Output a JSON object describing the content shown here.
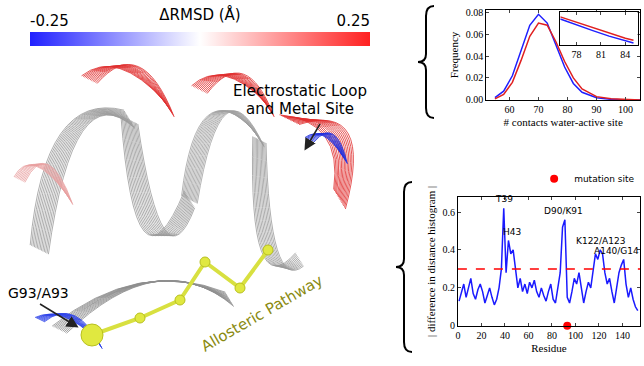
{
  "chart_data": [
    {
      "type": "line",
      "x_label": "# contacts water-active site",
      "y_label": "Frequency",
      "x": [
        55,
        58,
        61,
        64,
        67,
        70,
        73,
        76,
        79,
        82,
        85,
        90,
        95,
        100,
        105
      ],
      "series": [
        {
          "color": "#1f1fff",
          "values": [
            0.002,
            0.008,
            0.022,
            0.045,
            0.068,
            0.078,
            0.07,
            0.05,
            0.03,
            0.015,
            0.007,
            0.002,
            0.0005,
            0,
            0
          ]
        },
        {
          "color": "#e02020",
          "values": [
            0.001,
            0.005,
            0.016,
            0.036,
            0.058,
            0.07,
            0.068,
            0.053,
            0.035,
            0.02,
            0.01,
            0.003,
            0.001,
            0.0002,
            0
          ]
        }
      ],
      "xlim": [
        52,
        105
      ],
      "xticks": [
        60,
        70,
        80,
        90,
        100
      ],
      "ylim": [
        0,
        0.082
      ],
      "yticks": [
        {
          "value": 0,
          "label": "0.00"
        },
        0.02,
        0.04,
        0.06,
        0.08
      ]
    },
    {
      "type": "line",
      "x": [
        76,
        78,
        80,
        82,
        84,
        85
      ],
      "series": [
        {
          "color": "#1f1fff",
          "values": [
            0.05,
            0.041,
            0.033,
            0.025,
            0.018,
            0.015
          ]
        },
        {
          "color": "#e02020",
          "values": [
            0.053,
            0.045,
            0.037,
            0.029,
            0.022,
            0.019
          ]
        }
      ],
      "xlim": [
        76,
        85.5
      ],
      "xticks": [
        78,
        81,
        84
      ],
      "ylim": [
        0.012,
        0.06
      ],
      "yticks": [],
      "tick_labels": "x"
    },
    {
      "type": "line",
      "x_label": "Residue",
      "y_label": "| difference in distance histogram |",
      "x": [
        1,
        3,
        5,
        7,
        9,
        11,
        13,
        15,
        17,
        19,
        21,
        23,
        25,
        27,
        29,
        31,
        33,
        35,
        37,
        39,
        41,
        43,
        45,
        47,
        49,
        51,
        53,
        55,
        57,
        59,
        61,
        63,
        65,
        67,
        69,
        71,
        73,
        75,
        77,
        79,
        81,
        83,
        85,
        87,
        89,
        91,
        93,
        95,
        97,
        99,
        101,
        103,
        105,
        107,
        109,
        111,
        113,
        115,
        117,
        119,
        121,
        123,
        125,
        127,
        129,
        131,
        133,
        135,
        137,
        139,
        141,
        143,
        145,
        147,
        149,
        151,
        153
      ],
      "series": [
        {
          "color": "#1a1aff",
          "values": [
            0.13,
            0.18,
            0.22,
            0.15,
            0.2,
            0.25,
            0.17,
            0.14,
            0.19,
            0.22,
            0.18,
            0.12,
            0.16,
            0.2,
            0.15,
            0.11,
            0.14,
            0.2,
            0.3,
            0.62,
            0.28,
            0.45,
            0.38,
            0.4,
            0.3,
            0.2,
            0.25,
            0.18,
            0.22,
            0.17,
            0.23,
            0.2,
            0.24,
            0.18,
            0.15,
            0.2,
            0.16,
            0.13,
            0.18,
            0.22,
            0.14,
            0.12,
            0.2,
            0.28,
            0.52,
            0.56,
            0.15,
            0.12,
            0.18,
            0.25,
            0.22,
            0.28,
            0.2,
            0.12,
            0.18,
            0.23,
            0.2,
            0.3,
            0.38,
            0.35,
            0.4,
            0.38,
            0.28,
            0.22,
            0.25,
            0.18,
            0.12,
            0.2,
            0.28,
            0.32,
            0.35,
            0.22,
            0.15,
            0.2,
            0.14,
            0.1,
            0.08
          ]
        },
        {
          "color": "#ff0000",
          "line_style": "dash",
          "x": [
            0,
            155
          ],
          "values": [
            0.3,
            0.3
          ]
        },
        {
          "name": "mutation site",
          "color": "#ff0000",
          "marker": "circle",
          "x": [
            93
          ],
          "values": [
            0
          ]
        }
      ],
      "xlim": [
        0,
        155
      ],
      "xticks": [
        0,
        20,
        40,
        60,
        80,
        100,
        120,
        140
      ],
      "ylim": [
        0,
        0.68
      ],
      "yticks": [
        0,
        0.2,
        0.4,
        0.6
      ],
      "legend": "top right",
      "annotations": [
        {
          "text": "T39",
          "x": 39,
          "y": 0.63
        },
        {
          "text": "H43",
          "x": 46,
          "y": 0.46
        },
        {
          "text": "D90/K91",
          "x": 90,
          "y": 0.57
        },
        {
          "text": "K122/A123",
          "x": 121,
          "y": 0.41
        },
        {
          "text": "A140/G14",
          "x": 135,
          "y": 0.36
        }
      ]
    }
  ],
  "structure": {
    "colorbar": {
      "title": "ΔRMSD (Å)",
      "range": [
        -0.25,
        0.25
      ],
      "ticks": [
        -0.25,
        0.25
      ]
    },
    "labels": {
      "site": [
        "Electrostatic Loop",
        "and Metal Site"
      ],
      "mutation": "G93/A93",
      "pathway": "Allosteric Pathway"
    }
  }
}
